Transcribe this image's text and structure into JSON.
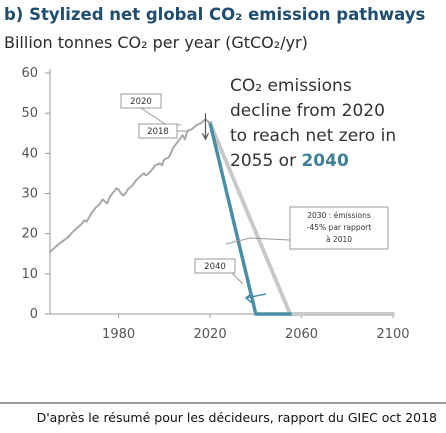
{
  "chart_data": {
    "type": "line",
    "title": "b) Stylized net global CO₂ emission pathways",
    "subtitle": "Billion tonnes CO₂ per year (GtCO₂/yr)",
    "xlabel": "",
    "ylabel": "",
    "xlim": [
      1950,
      2100
    ],
    "ylim": [
      0,
      60
    ],
    "x_ticks": [
      "1980",
      "2020",
      "2060",
      "2100"
    ],
    "y_ticks": [
      "0",
      "10",
      "20",
      "30",
      "40",
      "50",
      "60"
    ],
    "grid": false,
    "series": [
      {
        "color": "#a8a8a8",
        "points": [
          [
            1950,
            15.5
          ],
          [
            1952,
            16.5
          ],
          [
            1954,
            17.5
          ],
          [
            1956,
            18.3
          ],
          [
            1958,
            19.2
          ],
          [
            1960,
            20.5
          ],
          [
            1962,
            21.5
          ],
          [
            1964,
            22.5
          ],
          [
            1965,
            23.3
          ],
          [
            1966,
            23.0
          ],
          [
            1968,
            25.0
          ],
          [
            1970,
            26.5
          ],
          [
            1972,
            27.5
          ],
          [
            1973,
            28.5
          ],
          [
            1974,
            28.0
          ],
          [
            1975,
            27.5
          ],
          [
            1976,
            29.0
          ],
          [
            1977,
            29.8
          ],
          [
            1978,
            30.5
          ],
          [
            1979,
            31.3
          ],
          [
            1980,
            31.0
          ],
          [
            1981,
            30.0
          ],
          [
            1982,
            29.5
          ],
          [
            1983,
            30.0
          ],
          [
            1984,
            31.0
          ],
          [
            1986,
            32.0
          ],
          [
            1988,
            33.5
          ],
          [
            1990,
            34.5
          ],
          [
            1991,
            35.0
          ],
          [
            1992,
            34.5
          ],
          [
            1994,
            35.5
          ],
          [
            1996,
            37.0
          ],
          [
            1998,
            37.5
          ],
          [
            1999,
            37.0
          ],
          [
            2000,
            38.5
          ],
          [
            2002,
            39.0
          ],
          [
            2004,
            41.5
          ],
          [
            2006,
            43.0
          ],
          [
            2008,
            44.5
          ],
          [
            2009,
            43.5
          ],
          [
            2010,
            45.5
          ],
          [
            2012,
            46.0
          ],
          [
            2014,
            47.0
          ],
          [
            2016,
            47.5
          ],
          [
            2017,
            48.0
          ],
          [
            2018,
            48.5
          ],
          [
            2020,
            47.5
          ]
        ]
      },
      {
        "color": "#c9c9c9",
        "points": [
          [
            2020,
            47.5
          ],
          [
            2055,
            0
          ],
          [
            2060,
            0
          ],
          [
            2100,
            0
          ]
        ]
      },
      {
        "color": "#4a8fa8",
        "points": [
          [
            2020,
            47.5
          ],
          [
            2040,
            0
          ],
          [
            2055,
            0
          ]
        ]
      }
    ],
    "annotations": {
      "callout_line1": "CO₂ emissions",
      "callout_line2": "decline from 2020",
      "callout_line3": "to reach net zero in",
      "callout_line4_a": "2055 or ",
      "callout_line4_b": "2040",
      "label_2018": "2018",
      "label_2020": "2020",
      "label_2040": "2040",
      "note_line1": "2030 : émissions",
      "note_line2": "-45% par rapport",
      "note_line3": "à 2010"
    }
  },
  "source": "D'après le résumé pour les décideurs, rapport du GIEC oct 2018",
  "colors": {
    "title": "#1f4e6e",
    "history": "#a8a8a8",
    "pathway_2055": "#c9c9c9",
    "pathway_2040": "#4a8fa8",
    "highlight": "#3f7f9a"
  }
}
